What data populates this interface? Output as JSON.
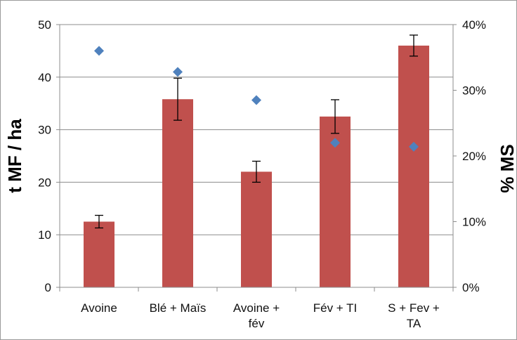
{
  "chart_data": {
    "type": "bar",
    "categories": [
      [
        "Avoine"
      ],
      [
        "Blé + Maïs"
      ],
      [
        "Avoine +",
        "fév"
      ],
      [
        "Fév + TI"
      ],
      [
        "S + Fev +",
        "TA"
      ]
    ],
    "series": [
      {
        "type": "bar",
        "axis": "left",
        "values": [
          12.5,
          35.8,
          22.0,
          32.5,
          46.0
        ],
        "error": [
          1.2,
          4.0,
          2.0,
          3.2,
          2.0
        ],
        "color": "#c0504d"
      },
      {
        "type": "scatter",
        "axis": "right",
        "marker": "diamond",
        "values": [
          0.36,
          0.328,
          0.285,
          0.22,
          0.214
        ],
        "color": "#4f81bd"
      }
    ],
    "ylabel": "t MF / ha",
    "ylim": [
      0,
      50
    ],
    "yticks": [
      0,
      10,
      20,
      30,
      40,
      50
    ],
    "y2label": "% MS",
    "y2lim": [
      0,
      0.4
    ],
    "y2ticks": [
      "0%",
      "10%",
      "20%",
      "30%",
      "40%"
    ],
    "grid": "horizontal",
    "legend": "none"
  }
}
